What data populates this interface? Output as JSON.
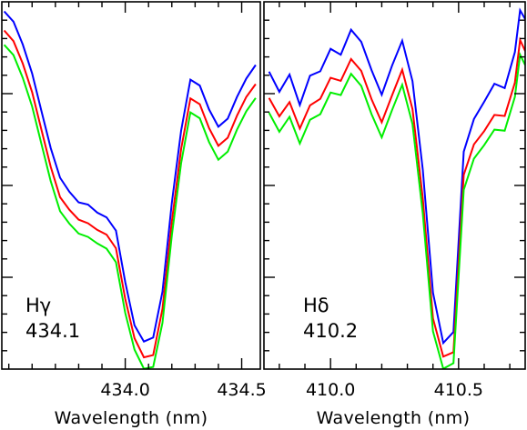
{
  "chart_data": [
    {
      "type": "line",
      "panel_label": [
        "Hγ",
        "434.1"
      ],
      "xlabel": "Wavelength (nm)",
      "ylabel": "",
      "xlim": [
        433.47,
        434.58
      ],
      "ylim": [
        0,
        1
      ],
      "xticks": [
        434.0,
        434.5
      ],
      "xtick_labels": [
        "434.0",
        "434.5"
      ],
      "grid": false,
      "x": [
        433.48,
        433.52,
        433.56,
        433.6,
        433.64,
        433.68,
        433.72,
        433.76,
        433.8,
        433.84,
        433.88,
        433.92,
        433.96,
        434.0,
        434.04,
        434.08,
        434.12,
        434.16,
        434.2,
        434.24,
        434.28,
        434.32,
        434.36,
        434.4,
        434.44,
        434.48,
        434.52,
        434.56
      ],
      "series": [
        {
          "color": "#0000ff",
          "values": [
            0.974,
            0.946,
            0.884,
            0.805,
            0.703,
            0.602,
            0.521,
            0.483,
            0.454,
            0.448,
            0.426,
            0.413,
            0.377,
            0.237,
            0.119,
            0.075,
            0.086,
            0.211,
            0.453,
            0.649,
            0.788,
            0.772,
            0.707,
            0.66,
            0.682,
            0.741,
            0.791,
            0.828
          ]
        },
        {
          "color": "#ff0000",
          "values": [
            0.922,
            0.893,
            0.832,
            0.754,
            0.652,
            0.551,
            0.468,
            0.434,
            0.407,
            0.397,
            0.379,
            0.366,
            0.329,
            0.191,
            0.084,
            0.032,
            0.038,
            0.164,
            0.402,
            0.599,
            0.737,
            0.721,
            0.656,
            0.608,
            0.63,
            0.69,
            0.741,
            0.776
          ]
        },
        {
          "color": "#00ee00",
          "values": [
            0.883,
            0.855,
            0.793,
            0.715,
            0.613,
            0.512,
            0.43,
            0.396,
            0.369,
            0.36,
            0.342,
            0.328,
            0.291,
            0.153,
            0.053,
            0.001,
            0.006,
            0.126,
            0.364,
            0.561,
            0.699,
            0.683,
            0.618,
            0.57,
            0.592,
            0.652,
            0.702,
            0.738
          ]
        }
      ]
    },
    {
      "type": "line",
      "panel_label": [
        "Hδ",
        "410.2"
      ],
      "xlabel": "Wavelength (nm)",
      "ylabel": "",
      "xlim": [
        409.74,
        410.76
      ],
      "ylim": [
        0,
        1
      ],
      "xticks": [
        410.0,
        410.5
      ],
      "xtick_labels": [
        "410.0",
        "410.5"
      ],
      "grid": false,
      "x": [
        409.76,
        409.8,
        409.84,
        409.88,
        409.92,
        409.96,
        410.0,
        410.04,
        410.08,
        410.12,
        410.16,
        410.2,
        410.24,
        410.28,
        410.32,
        410.36,
        410.4,
        410.44,
        410.48,
        410.52,
        410.56,
        410.6,
        410.64,
        410.68,
        410.72,
        410.74,
        410.76
      ],
      "series": [
        {
          "color": "#0000ff",
          "values": [
            0.81,
            0.755,
            0.802,
            0.719,
            0.799,
            0.811,
            0.872,
            0.856,
            0.924,
            0.891,
            0.814,
            0.747,
            0.826,
            0.894,
            0.784,
            0.543,
            0.208,
            0.071,
            0.101,
            0.592,
            0.681,
            0.728,
            0.777,
            0.765,
            0.863,
            0.977,
            0.953
          ]
        },
        {
          "color": "#ff0000",
          "values": [
            0.738,
            0.688,
            0.727,
            0.655,
            0.718,
            0.736,
            0.793,
            0.785,
            0.844,
            0.812,
            0.735,
            0.672,
            0.745,
            0.815,
            0.708,
            0.465,
            0.138,
            0.034,
            0.046,
            0.529,
            0.612,
            0.648,
            0.692,
            0.689,
            0.78,
            0.896,
            0.866
          ]
        },
        {
          "color": "#00ee00",
          "values": [
            0.698,
            0.646,
            0.687,
            0.614,
            0.679,
            0.694,
            0.753,
            0.746,
            0.804,
            0.771,
            0.694,
            0.631,
            0.705,
            0.774,
            0.667,
            0.424,
            0.103,
            0.001,
            0.016,
            0.488,
            0.573,
            0.61,
            0.652,
            0.649,
            0.741,
            0.856,
            0.828
          ]
        }
      ]
    }
  ]
}
